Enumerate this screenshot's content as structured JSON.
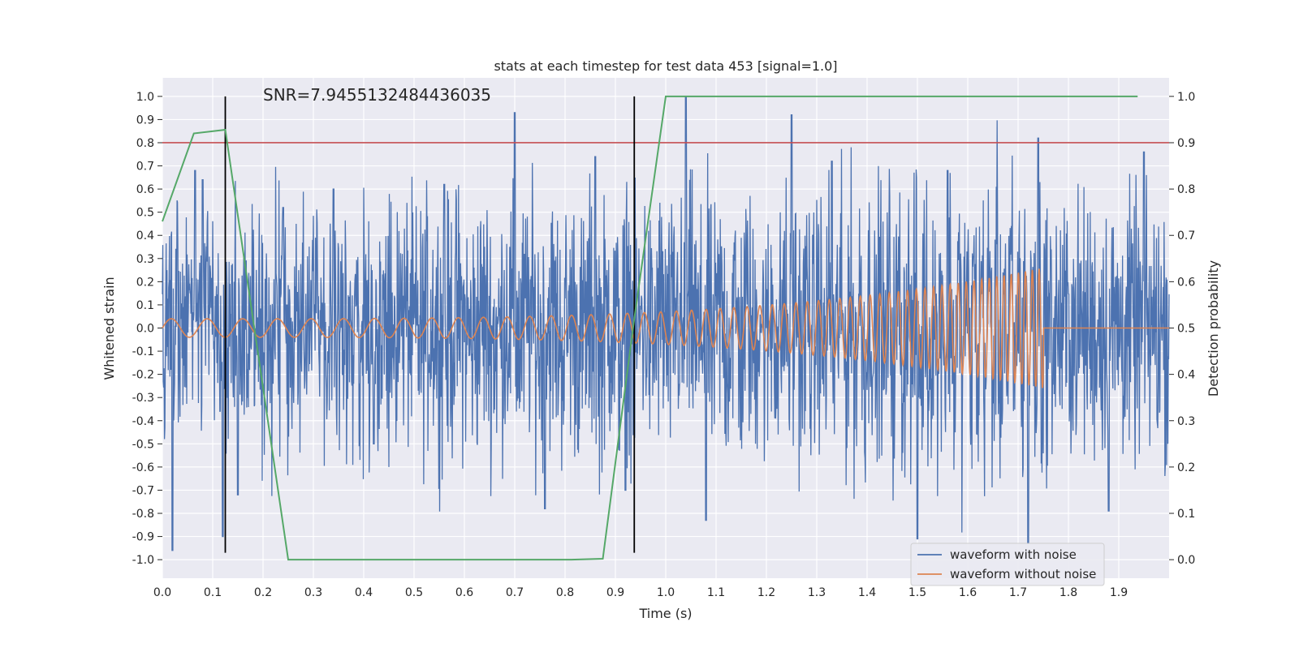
{
  "chart_data": {
    "type": "line",
    "title": "stats at each timestep for test data 453 [signal=1.0]",
    "xlabel": "Time (s)",
    "ylabel": "Whitened strain",
    "y2label": "Detection probability",
    "xlim": [
      0.0,
      2.0
    ],
    "ylim": [
      -1.08,
      1.08
    ],
    "y2lim": [
      -0.04,
      1.04
    ],
    "x_ticks": [
      "0.0",
      "0.1",
      "0.2",
      "0.3",
      "0.4",
      "0.5",
      "0.6",
      "0.7",
      "0.8",
      "0.9",
      "1.0",
      "1.1",
      "1.2",
      "1.3",
      "1.4",
      "1.5",
      "1.6",
      "1.7",
      "1.8",
      "1.9"
    ],
    "y_ticks": [
      "-1.0",
      "-0.9",
      "-0.8",
      "-0.7",
      "-0.6",
      "-0.5",
      "-0.4",
      "-0.3",
      "-0.2",
      "-0.1",
      "0.0",
      "0.1",
      "0.2",
      "0.3",
      "0.4",
      "0.5",
      "0.6",
      "0.7",
      "0.8",
      "0.9",
      "1.0"
    ],
    "y2_ticks": [
      "0.0",
      "0.1",
      "0.2",
      "0.3",
      "0.4",
      "0.5",
      "0.6",
      "0.7",
      "0.8",
      "0.9",
      "1.0"
    ],
    "grid": true,
    "legend_position": "bottom-right",
    "annotation": "SNR=7.9455132484436035",
    "colors": {
      "noisy": "#4c72b0",
      "clean": "#dd8452",
      "prob": "#55a868",
      "threshold": "#c44e52",
      "marker": "#000000",
      "axes_bg": "#eaeaf2",
      "grid": "#ffffff"
    },
    "series": [
      {
        "name": "waveform with noise",
        "axis": "left",
        "description_points": "noise-dominated strain, approx. uniform within [-1.0, 1.0], clean chirp superimposed",
        "peaks": [
          [
            0.02,
            -0.96
          ],
          [
            0.065,
            0.68
          ],
          [
            0.08,
            0.64
          ],
          [
            0.12,
            -0.9
          ],
          [
            0.15,
            -0.72
          ],
          [
            0.24,
            0.52
          ],
          [
            0.34,
            0.6
          ],
          [
            0.42,
            -0.5
          ],
          [
            0.56,
            0.62
          ],
          [
            0.7,
            0.93
          ],
          [
            0.76,
            -0.78
          ],
          [
            0.86,
            0.74
          ],
          [
            0.92,
            -0.7
          ],
          [
            1.04,
            1.0
          ],
          [
            1.08,
            -0.83
          ],
          [
            1.25,
            0.92
          ],
          [
            1.33,
            0.72
          ],
          [
            1.5,
            -0.91
          ],
          [
            1.56,
            0.68
          ],
          [
            1.72,
            -0.93
          ],
          [
            1.74,
            0.82
          ],
          [
            1.88,
            -0.79
          ],
          [
            1.95,
            0.76
          ]
        ]
      },
      {
        "name": "waveform without noise",
        "axis": "left",
        "chirp": {
          "t_start": 0.0,
          "t_merge": 1.75,
          "f_start": 14,
          "f_end": 75,
          "amp_start": 0.04,
          "amp_end": 0.26
        }
      },
      {
        "name": "",
        "axis": "right",
        "x": [
          0.0,
          0.0625,
          0.125,
          0.25,
          0.3125,
          0.375,
          0.4375,
          0.5,
          0.5625,
          0.625,
          0.6875,
          0.75,
          0.8125,
          0.875,
          0.9375,
          1.0,
          1.0625,
          1.125,
          1.25,
          1.5,
          1.75,
          1.9375
        ],
        "y": [
          0.73,
          0.92,
          0.928,
          0.0,
          0.0,
          0.0,
          0.0,
          0.0,
          0.0,
          0.0,
          0.0,
          0.0,
          0.0,
          0.002,
          0.52,
          1.0,
          1.0,
          1.0,
          1.0,
          1.0,
          1.0,
          1.0
        ]
      }
    ],
    "threshold_y": 0.8,
    "markers_x": [
      0.125,
      0.9375
    ],
    "marker_y_range": [
      -0.97,
      1.0
    ]
  }
}
